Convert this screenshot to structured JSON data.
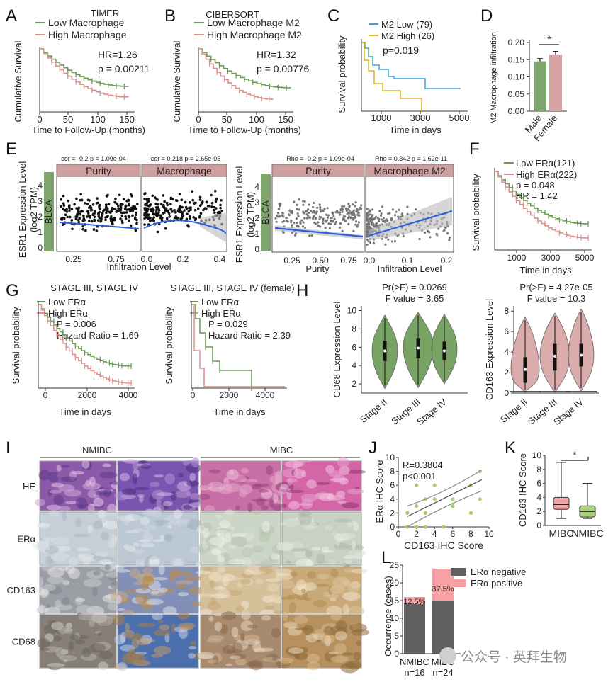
{
  "colors": {
    "green": "#6b9a55",
    "pink": "#d9908f",
    "blue": "#3aa3dc",
    "gold": "#e0b323",
    "dark": "#595959",
    "strip": "#cf9f9e",
    "bar_green": "#7fa56c",
    "bar_pink": "#d6a4a3",
    "box_pink": "#f4a4a6",
    "box_green": "#a7d27a",
    "dot_green": "#a6d06a",
    "er_neg": "#606060",
    "er_pos": "#f7a1a4",
    "bluefit": "#2f5fe0"
  },
  "watermark": "公众号 · 英拜生物",
  "chart_data": [
    {
      "panel": "A",
      "type": "line",
      "title": "TIMER",
      "series": [
        {
          "name": "Low Macrophage"
        },
        {
          "name": "High Macrophage"
        }
      ],
      "annotations": [
        "HR=1.26",
        "p = 0.00211"
      ],
      "xlabel": "Time to Follow-Up (months)",
      "ylabel": "Cumulative Survival",
      "xticks": [
        "0",
        "50",
        "100",
        "150"
      ],
      "xlim": [
        0,
        180
      ]
    },
    {
      "panel": "B",
      "type": "line",
      "title": "CIBERSORT",
      "series": [
        {
          "name": "Low Macrophage M2"
        },
        {
          "name": "High Macrophage M2"
        }
      ],
      "annotations": [
        "HR=1.32",
        "p = 0.00776"
      ],
      "xlabel": "Time to Follow-Up (months)",
      "ylabel": "Cumulative Survival",
      "xticks": [
        "0",
        "50",
        "100",
        "150"
      ],
      "xlim": [
        0,
        180
      ]
    },
    {
      "panel": "C",
      "type": "line",
      "series": [
        {
          "name": "M2 Low (79)"
        },
        {
          "name": "M2 High (26)"
        }
      ],
      "annotations": [
        "p=0.019"
      ],
      "xlabel": "Time in days",
      "ylabel": "Survival probability",
      "xticks": [
        "1000",
        "3000",
        "5000"
      ]
    },
    {
      "panel": "D",
      "type": "bar",
      "categories": [
        "Male",
        "Female"
      ],
      "values": [
        0.145,
        0.165
      ],
      "errors": [
        0.008,
        0.009
      ],
      "ylabel": "M2 Macrophage infiltration",
      "yticks": [
        "0.00",
        "0.05",
        "0.10",
        "0.15",
        "0.20"
      ],
      "ylim": [
        0,
        0.2
      ],
      "annotations": [
        "*"
      ]
    },
    {
      "panel": "E",
      "type": "scatter",
      "label": "BLCA",
      "headers": [
        "cor = -0.2   p = 1.09e-04",
        "cor = 0.218   p = 2.65e-05",
        "Rho = -0.2   p = 1.09e-04",
        "Rho = 0.342   p = 1.62e-11"
      ],
      "facets": [
        "Purity",
        "Macrophage",
        "Purity",
        "Macrophage M2"
      ],
      "ylabel1": "ESR1 Expression Level",
      "ylabel2": "(log2 TPM)",
      "xlabel_left": "Infiltration Level",
      "xlabel_right_a": "Purity",
      "xlabel_right_b": "Infiltration Level",
      "yticks": [
        "0",
        "1",
        "2",
        "3",
        "4"
      ],
      "xticks_left_a": [
        "0.25",
        "0.75"
      ],
      "xticks_left_b": [
        "0.0",
        "0.2",
        "0.4"
      ],
      "xticks_right_a": [
        "0.25",
        "0.50",
        "0.75"
      ],
      "xticks_right_b": [
        "0.0",
        "0.1",
        "0.2"
      ]
    },
    {
      "panel": "F",
      "type": "line",
      "series": [
        {
          "name": "Low ERα(121)"
        },
        {
          "name": "High ERα(222)"
        }
      ],
      "annotations": [
        "p = 0.048",
        "HR = 1.42"
      ],
      "xlabel": "Time in days",
      "ylabel": "Survival probability",
      "xticks": [
        "1000",
        "3000",
        "5000"
      ]
    },
    {
      "panel": "G",
      "type": "line",
      "title": "STAGE III, STAGE IV",
      "series": [
        {
          "name": "Low ERα"
        },
        {
          "name": "High ERα"
        }
      ],
      "annotations": [
        "P = 0.006",
        "Hazard Ratio = 1.69"
      ],
      "xlabel": "Time in days",
      "ylabel": "Survival probability",
      "xticks": [
        "0",
        "2000",
        "4000"
      ]
    },
    {
      "panel": "G2",
      "type": "line",
      "title": "STAGE III, STAGE IV  (female)",
      "series": [
        {
          "name": "Low ERα"
        },
        {
          "name": "High ERα"
        }
      ],
      "annotations": [
        "P = 0.029",
        "Hazard Ratio = 2.39"
      ],
      "xlabel": "Time in days",
      "ylabel": "Survival probability",
      "xticks": [
        "0",
        "2000",
        "4000"
      ]
    },
    {
      "panel": "H",
      "type": "violin",
      "categories": [
        "Stage II",
        "Stage III",
        "Stage IV"
      ],
      "title1": "Pr(>F) = 0.0269",
      "title2": "F value = 3.65",
      "ylabel": "CD68 Expression Level",
      "yticks": [
        "2",
        "4",
        "6",
        "8",
        "10"
      ],
      "ylim": [
        1,
        10.5
      ],
      "medians": [
        5.6,
        5.9,
        5.6
      ]
    },
    {
      "panel": "H2",
      "type": "violin",
      "categories": [
        "Stage II",
        "Stage III",
        "Stage IV"
      ],
      "title1": "Pr(>F) = 4.27e-05",
      "title2": "F value = 10.3",
      "ylabel": "CD163 Expression Level",
      "yticks": [
        "0",
        "2",
        "4",
        "6",
        "8"
      ],
      "ylim": [
        0,
        8.5
      ],
      "medians": [
        2.3,
        3.6,
        3.7
      ]
    },
    {
      "panel": "I",
      "type": "image-grid",
      "columns": [
        "NMIBC",
        "MIBC"
      ],
      "rows": [
        "HE",
        "ERα",
        "CD163",
        "CD68"
      ]
    },
    {
      "panel": "J",
      "type": "scatter",
      "annotations": [
        "R=0.3804",
        "p<0.001"
      ],
      "xlabel": "CD163 IHC Score",
      "ylabel": "ERα IHC Score",
      "xticks": [
        "0",
        "2",
        "4",
        "6",
        "8",
        "10"
      ],
      "yticks": [
        "0",
        "2",
        "4",
        "6",
        "8",
        "10"
      ],
      "xlim": [
        0,
        10
      ],
      "ylim": [
        0,
        10
      ],
      "x": [
        1,
        1,
        2,
        2,
        2,
        3,
        3,
        3,
        4,
        4,
        5,
        6,
        6,
        8,
        8,
        9,
        9
      ],
      "y": [
        0,
        2,
        6,
        3,
        0,
        4,
        2,
        0,
        6,
        4,
        0,
        4,
        3,
        2,
        6,
        8,
        4
      ]
    },
    {
      "panel": "K",
      "type": "box",
      "categories": [
        "MIBC",
        "NMIBC"
      ],
      "boxes": [
        {
          "min": 1,
          "q1": 2.3,
          "median": 3.0,
          "q3": 4.0,
          "max": 9
        },
        {
          "min": 1,
          "q1": 1.2,
          "median": 2.0,
          "q3": 2.8,
          "max": 6
        }
      ],
      "ylabel": "CD163 IHC Score",
      "yticks": [
        "0",
        "2",
        "4",
        "6",
        "8",
        "10"
      ],
      "ylim": [
        0,
        10
      ],
      "annotations": [
        "*"
      ]
    },
    {
      "panel": "L",
      "type": "bar",
      "stacked": true,
      "categories": [
        "NMIBC",
        "MIBC"
      ],
      "ns": [
        "n=16",
        "n=24"
      ],
      "series": [
        {
          "name": "ERα negative",
          "values": [
            14,
            15
          ]
        },
        {
          "name": "ERα positive",
          "values": [
            2,
            9
          ]
        }
      ],
      "pct": [
        "12.5%",
        "37.5%"
      ],
      "ylabel": "Occurrence (cases)",
      "yticks": [
        "0",
        "5",
        "10",
        "15",
        "20",
        "25"
      ],
      "ylim": [
        0,
        25
      ]
    }
  ]
}
